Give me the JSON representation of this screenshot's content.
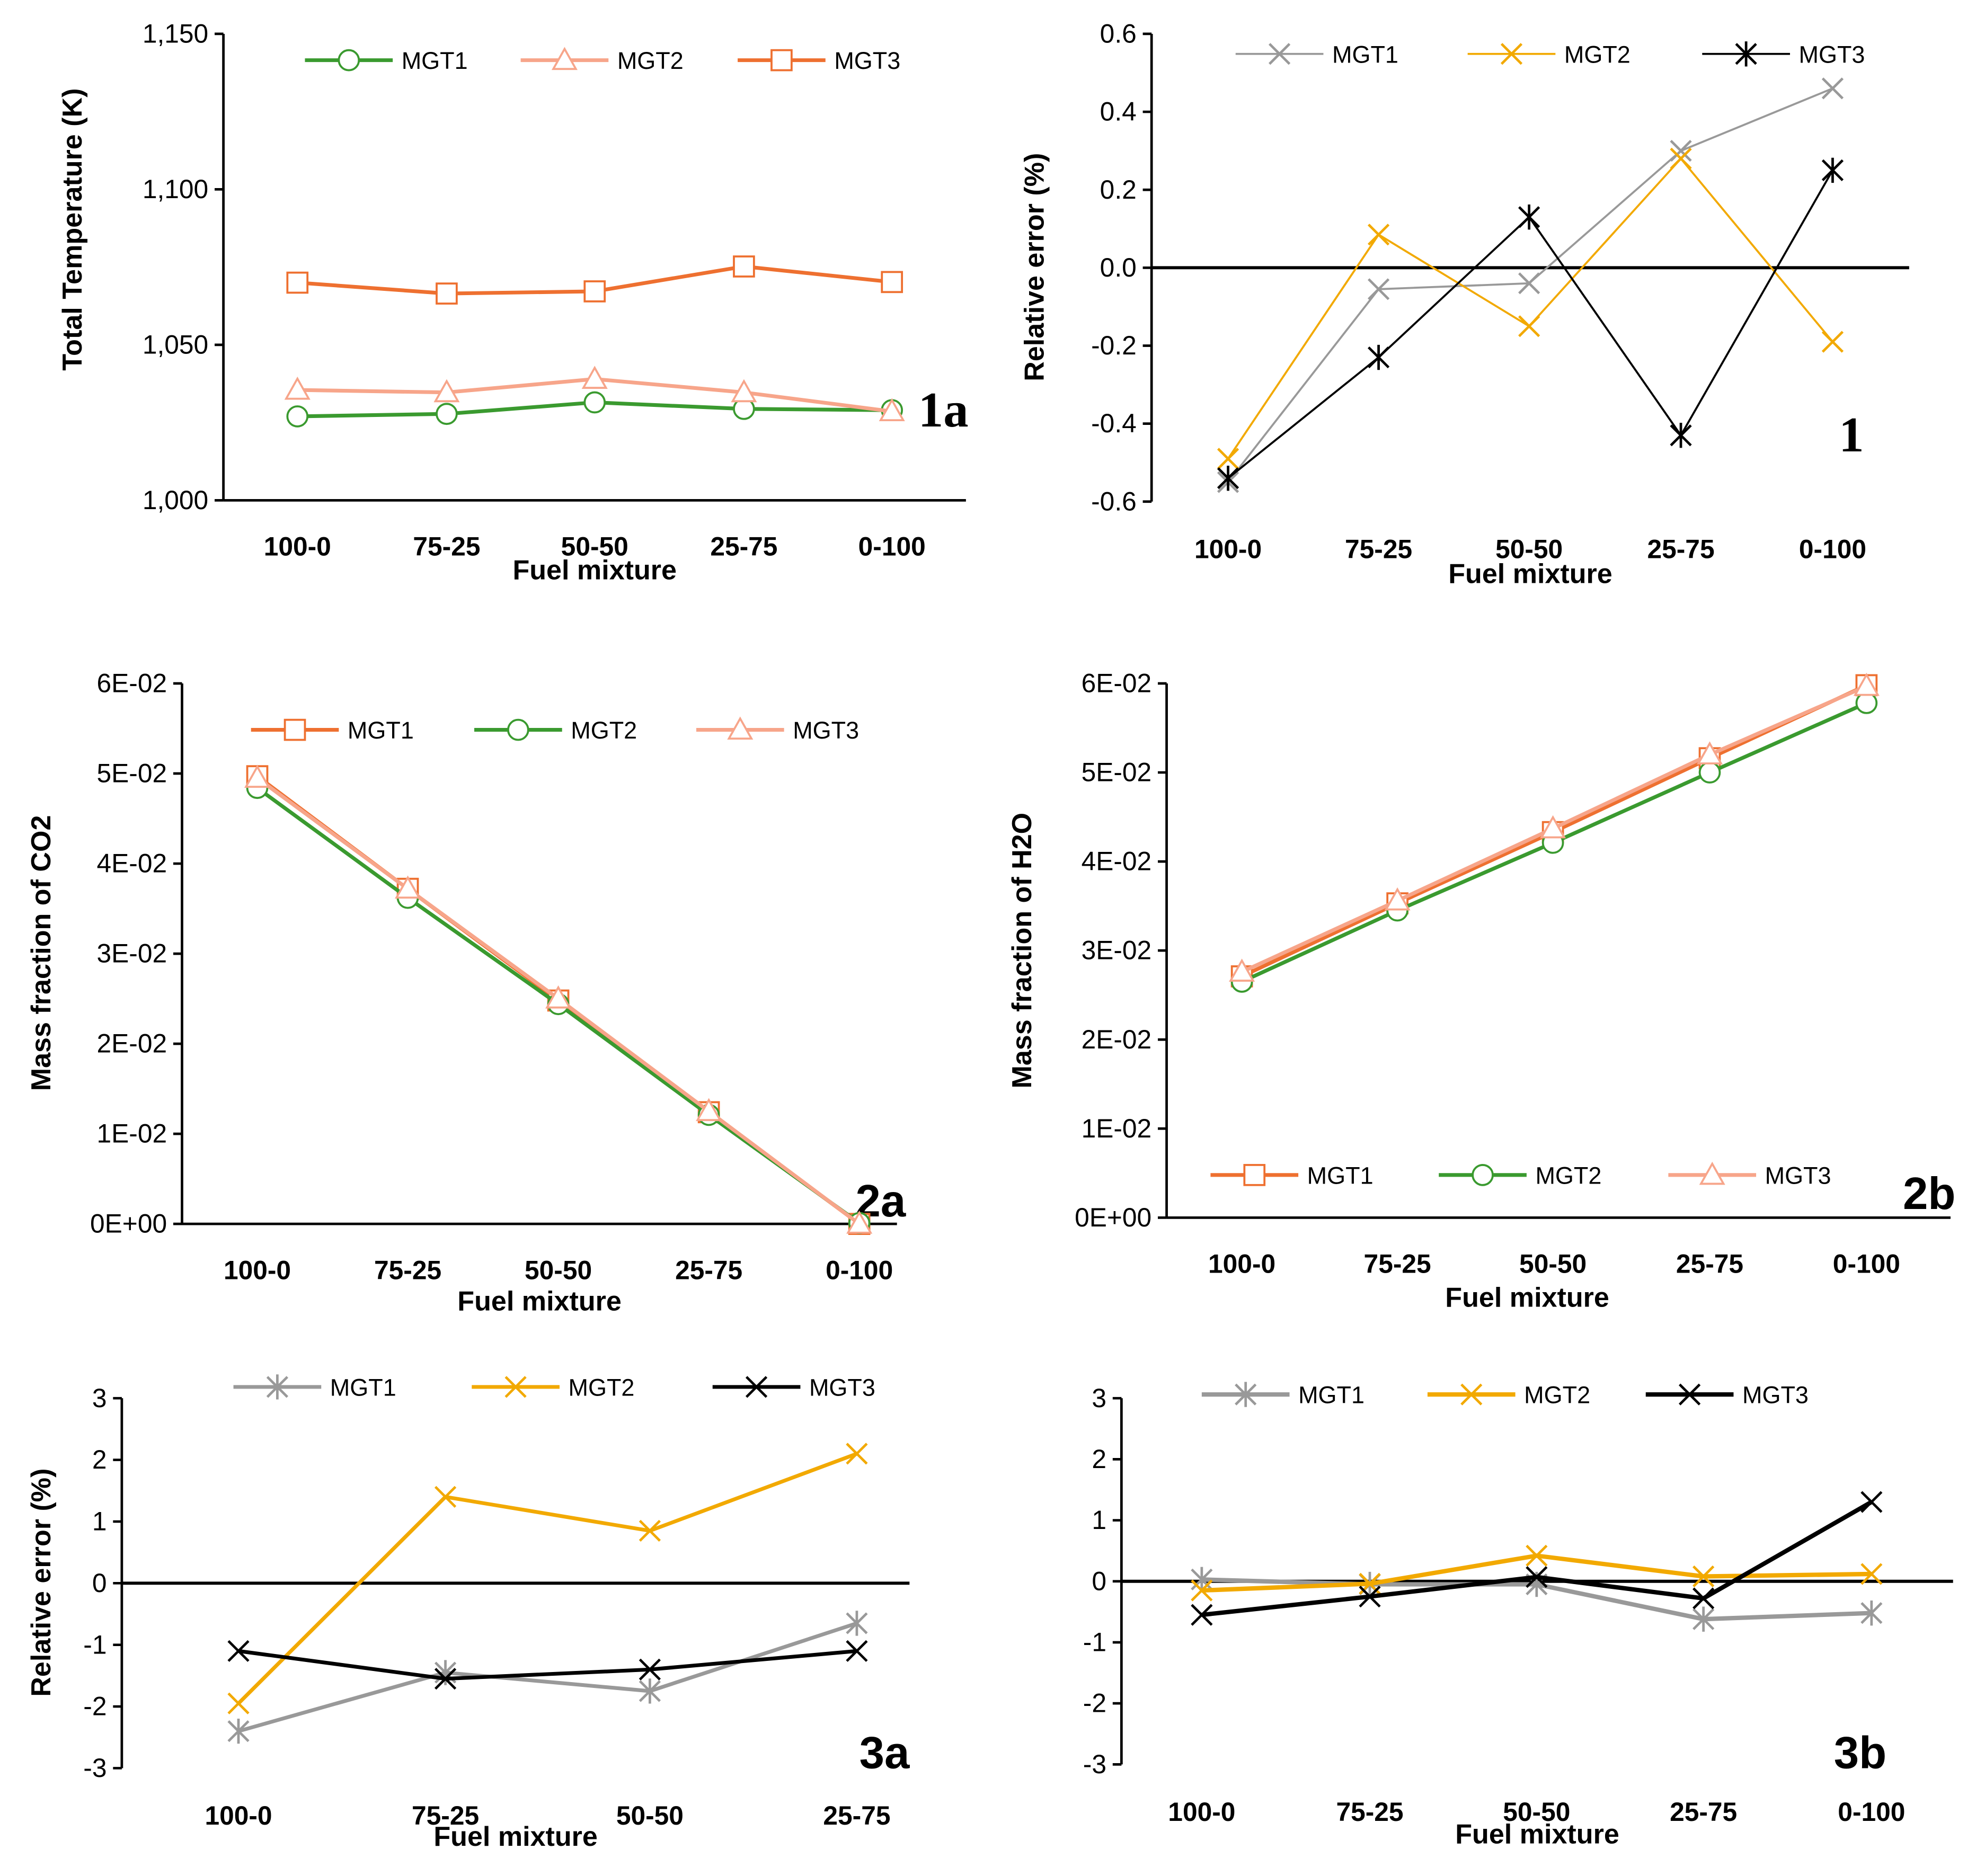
{
  "chart_data": [
    {
      "id": "1a",
      "type": "line",
      "panel_label": "1a",
      "xlabel": "Fuel mixture",
      "ylabel": "Total Temperature (K)",
      "categories": [
        "100-0",
        "75-25",
        "50-50",
        "25-75",
        "0-100"
      ],
      "ylim": [
        1000,
        1150
      ],
      "yticks": [
        1000,
        1050,
        1100,
        1150
      ],
      "ytick_labels": [
        "1,000",
        "1,050",
        "1,100",
        "1,150"
      ],
      "zero_line": false,
      "legend": "top",
      "series": [
        {
          "name": "MGT1",
          "color": "#3a9a2f",
          "marker": "circle",
          "values": [
            1027,
            1027.8,
            1031.5,
            1029.4,
            1029
          ]
        },
        {
          "name": "MGT2",
          "color": "#f7a58a",
          "marker": "triangle",
          "values": [
            1035.5,
            1034.7,
            1039,
            1034.7,
            1028.6
          ]
        },
        {
          "name": "MGT3",
          "color": "#ee7030",
          "marker": "square",
          "values": [
            1070,
            1066.5,
            1067.2,
            1075.2,
            1070.2
          ]
        }
      ]
    },
    {
      "id": "1",
      "type": "line",
      "panel_label": "1",
      "xlabel": "Fuel mixture",
      "ylabel": "Relative error (%)",
      "categories": [
        "100-0",
        "75-25",
        "50-50",
        "25-75",
        "0-100"
      ],
      "ylim": [
        -0.6,
        0.6
      ],
      "yticks": [
        -0.6,
        -0.4,
        -0.2,
        0,
        0.2,
        0.4,
        0.6
      ],
      "ytick_labels": [
        "-0.6",
        "-0.4",
        "-0.2",
        "0.0",
        "0.2",
        "0.4",
        "0.6"
      ],
      "zero_line": true,
      "legend": "top",
      "series": [
        {
          "name": "MGT1",
          "color": "#999999",
          "marker": "x",
          "values": [
            -0.55,
            -0.055,
            -0.04,
            0.3,
            0.46
          ]
        },
        {
          "name": "MGT2",
          "color": "#f2a900",
          "marker": "x",
          "values": [
            -0.49,
            0.085,
            -0.15,
            0.28,
            -0.19
          ]
        },
        {
          "name": "MGT3",
          "color": "#000000",
          "marker": "star",
          "values": [
            -0.54,
            -0.23,
            0.13,
            -0.43,
            0.25
          ]
        }
      ]
    },
    {
      "id": "2a",
      "type": "line",
      "panel_label": "2a",
      "xlabel": "Fuel mixture",
      "ylabel": "Mass fraction of CO2",
      "categories": [
        "100-0",
        "75-25",
        "50-50",
        "25-75",
        "0-100"
      ],
      "ylim": [
        0,
        0.06
      ],
      "yticks": [
        0,
        0.01,
        0.02,
        0.03,
        0.04,
        0.05,
        0.06
      ],
      "ytick_labels": [
        "0E+00",
        "1E-02",
        "2E-02",
        "3E-02",
        "4E-02",
        "5E-02",
        "6E-02"
      ],
      "zero_line": false,
      "legend": "top",
      "series": [
        {
          "name": "MGT1",
          "color": "#ee7030",
          "marker": "square",
          "values": [
            0.0497,
            0.0372,
            0.0248,
            0.0124,
            0.0
          ]
        },
        {
          "name": "MGT2",
          "color": "#3a9a2f",
          "marker": "circle",
          "values": [
            0.0484,
            0.0362,
            0.0244,
            0.0121,
            0.0001
          ]
        },
        {
          "name": "MGT3",
          "color": "#f7a58a",
          "marker": "triangle",
          "values": [
            0.0495,
            0.0372,
            0.025,
            0.0125,
            0.0
          ]
        }
      ]
    },
    {
      "id": "2b",
      "type": "line",
      "panel_label": "2b",
      "xlabel": "Fuel mixture",
      "ylabel": "Mass fraction of H2O",
      "categories": [
        "100-0",
        "75-25",
        "50-50",
        "25-75",
        "0-100"
      ],
      "ylim": [
        0,
        0.06
      ],
      "yticks": [
        0,
        0.01,
        0.02,
        0.03,
        0.04,
        0.05,
        0.06
      ],
      "ytick_labels": [
        "0E+00",
        "1E-02",
        "2E-02",
        "3E-02",
        "4E-02",
        "5E-02",
        "6E-02"
      ],
      "zero_line": false,
      "legend": "bottom",
      "series": [
        {
          "name": "MGT1",
          "color": "#ee7030",
          "marker": "square",
          "values": [
            0.0271,
            0.0353,
            0.0433,
            0.0516,
            0.0598
          ]
        },
        {
          "name": "MGT2",
          "color": "#3a9a2f",
          "marker": "circle",
          "values": [
            0.0265,
            0.0345,
            0.0421,
            0.05,
            0.0578
          ]
        },
        {
          "name": "MGT3",
          "color": "#f7a58a",
          "marker": "triangle",
          "values": [
            0.0276,
            0.0356,
            0.0437,
            0.052,
            0.0597
          ]
        }
      ]
    },
    {
      "id": "3a",
      "type": "line",
      "panel_label": "3a",
      "xlabel": "Fuel mixture",
      "ylabel": "Relative error (%)",
      "categories": [
        "100-0",
        "75-25",
        "50-50",
        "25-75"
      ],
      "ylim": [
        -3,
        3
      ],
      "yticks": [
        -3,
        -2,
        -1,
        0,
        1,
        2,
        3
      ],
      "ytick_labels": [
        "-3",
        "-2",
        "-1",
        "0",
        "1",
        "2",
        "3"
      ],
      "zero_line": true,
      "legend": "top",
      "series": [
        {
          "name": "MGT1",
          "color": "#999999",
          "marker": "star",
          "values": [
            -2.4,
            -1.45,
            -1.75,
            -0.65
          ]
        },
        {
          "name": "MGT2",
          "color": "#f2a900",
          "marker": "x",
          "values": [
            -1.95,
            1.4,
            0.85,
            2.1
          ]
        },
        {
          "name": "MGT3",
          "color": "#000000",
          "marker": "x",
          "values": [
            -1.1,
            -1.55,
            -1.4,
            -1.1
          ]
        }
      ]
    },
    {
      "id": "3b",
      "type": "line",
      "panel_label": "3b",
      "xlabel": "Fuel mixture",
      "ylabel": "",
      "categories": [
        "100-0",
        "75-25",
        "50-50",
        "25-75",
        "0-100"
      ],
      "ylim": [
        -3,
        3
      ],
      "yticks": [
        -3,
        -2,
        -1,
        0,
        1,
        2,
        3
      ],
      "ytick_labels": [
        "-3",
        "-2",
        "-1",
        "0",
        "1",
        "2",
        "3"
      ],
      "zero_line": true,
      "legend": "top",
      "series": [
        {
          "name": "MGT1",
          "color": "#999999",
          "marker": "star",
          "values": [
            0.03,
            -0.05,
            -0.05,
            -0.62,
            -0.52
          ]
        },
        {
          "name": "MGT2",
          "color": "#f2a900",
          "marker": "x",
          "values": [
            -0.15,
            -0.04,
            0.42,
            0.08,
            0.12
          ]
        },
        {
          "name": "MGT3",
          "color": "#000000",
          "marker": "x",
          "values": [
            -0.55,
            -0.25,
            0.07,
            -0.28,
            1.3
          ]
        }
      ]
    }
  ]
}
